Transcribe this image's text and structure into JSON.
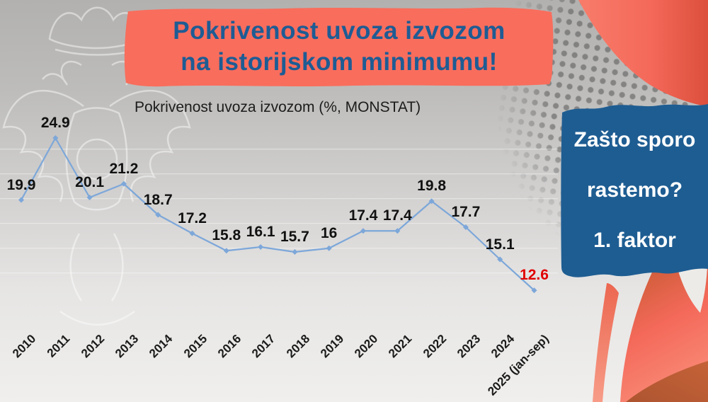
{
  "header_banner": {
    "line1": "Pokrivenost uvoza izvozom",
    "line2": "na istorijskom minimumu!",
    "bg_color": "#f96d5c",
    "text_color": "#1e5c94"
  },
  "question_box": {
    "line1": "Zašto sporo",
    "line2": "rastemo?",
    "line3": "1. faktor",
    "bg_color": "#1e5d92",
    "text_color": "#ffffff"
  },
  "chart_data": {
    "type": "line",
    "title": "Pokrivenost uvoza izvozom (%, MONSTAT)",
    "categories": [
      "2010",
      "2011",
      "2012",
      "2013",
      "2014",
      "2015",
      "2016",
      "2017",
      "2018",
      "2019",
      "2020",
      "2021",
      "2022",
      "2023",
      "2024",
      "2025 (jan-sep)"
    ],
    "values": [
      19.9,
      24.9,
      20.1,
      21.2,
      18.7,
      17.2,
      15.8,
      16.1,
      15.7,
      16,
      17.4,
      17.4,
      19.8,
      17.7,
      15.1,
      12.6
    ],
    "ylim": [
      12,
      26
    ],
    "gridlines_y_values": [
      24,
      22,
      20,
      18,
      16,
      14
    ],
    "grid": true,
    "legend": "none",
    "line_color": "#7da7d9",
    "marker_color": "#7da7d9",
    "label_color": "#111111",
    "last_label_color": "#e00000",
    "highlight_last_point": true
  },
  "decor": {
    "swoosh_light": "#f8725f",
    "swoosh_dark": "#dc4f3c",
    "ribbon_top_dark": "#cc5c36",
    "ribbon_salmon": "#f4695a",
    "ribbon_bright": "#f98d78",
    "corner_brown": "#ad5530",
    "gap_white": "#edebe8"
  }
}
